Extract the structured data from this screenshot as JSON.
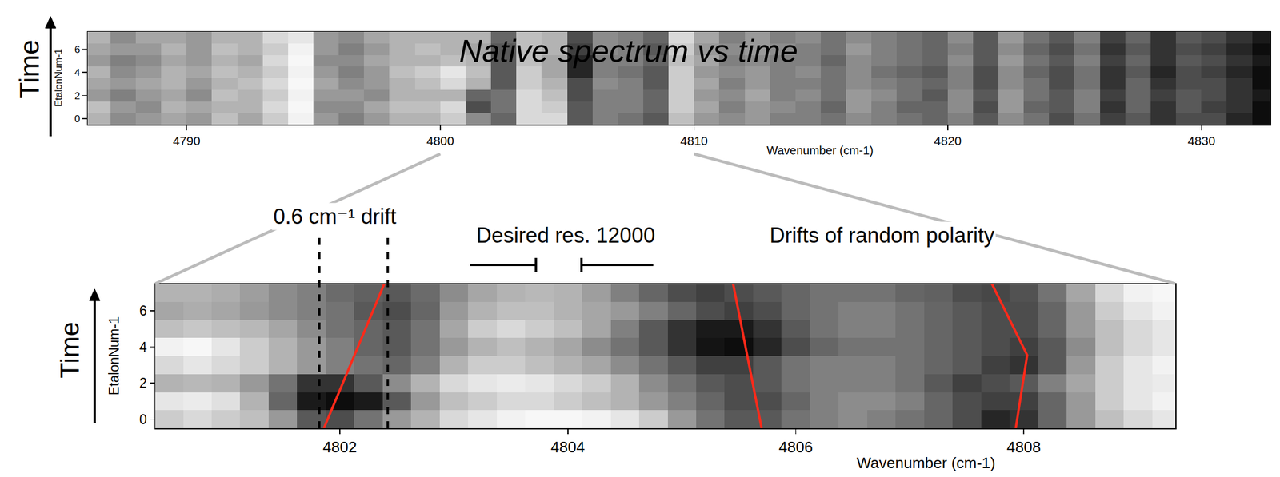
{
  "chart_data": [
    {
      "type": "heatmap",
      "title": "Native spectrum vs time",
      "x_label": "Wavenumber (cm-1)",
      "y_label": "EtalonNum-1",
      "arrow_label": "Time",
      "x": [
        4786.5,
        4787.5,
        4788.5,
        4789.5,
        4790.5,
        4791.5,
        4792.5,
        4793.5,
        4794.5,
        4795.5,
        4796.5,
        4797.5,
        4798.5,
        4799.5,
        4800.5,
        4801.5,
        4802.5,
        4803.5,
        4804.5,
        4805.5,
        4806.5,
        4807.5,
        4808.5,
        4809.5,
        4810.5,
        4811.5,
        4812.5,
        4813.5,
        4814.5,
        4815.5,
        4816.5,
        4817.5,
        4818.5,
        4819.5,
        4820.5,
        4821.5,
        4822.5,
        4823.5,
        4824.5,
        4825.5,
        4826.5,
        4827.5,
        4828.5,
        4829.5,
        4830.5,
        4831.5,
        4832.5
      ],
      "y": [
        0,
        1,
        2,
        3,
        4,
        5,
        6,
        7
      ],
      "cells": [
        [
          0.7,
          0.55,
          0.6,
          0.65,
          0.6,
          0.75,
          0.65,
          0.8,
          0.95,
          0.6,
          0.5,
          0.6,
          0.7,
          0.7,
          0.8,
          0.55,
          0.4,
          0.85,
          0.85,
          0.35,
          0.5,
          0.45,
          0.35,
          0.75,
          0.6,
          0.55,
          0.6,
          0.5,
          0.5,
          0.45,
          0.55,
          0.5,
          0.45,
          0.4,
          0.5,
          0.35,
          0.55,
          0.45,
          0.3,
          0.45,
          0.25,
          0.35,
          0.2,
          0.3,
          0.3,
          0.15,
          0.05
        ],
        [
          0.75,
          0.6,
          0.55,
          0.7,
          0.65,
          0.7,
          0.7,
          0.85,
          0.97,
          0.55,
          0.55,
          0.65,
          0.75,
          0.75,
          0.85,
          0.3,
          0.45,
          0.85,
          0.8,
          0.35,
          0.5,
          0.5,
          0.4,
          0.8,
          0.65,
          0.5,
          0.6,
          0.55,
          0.5,
          0.4,
          0.6,
          0.5,
          0.4,
          0.4,
          0.55,
          0.3,
          0.6,
          0.4,
          0.35,
          0.5,
          0.2,
          0.4,
          0.2,
          0.35,
          0.25,
          0.2,
          0.05
        ],
        [
          0.6,
          0.5,
          0.6,
          0.65,
          0.55,
          0.75,
          0.7,
          0.8,
          0.95,
          0.6,
          0.6,
          0.55,
          0.7,
          0.7,
          0.7,
          0.4,
          0.45,
          0.85,
          0.75,
          0.3,
          0.5,
          0.5,
          0.4,
          0.8,
          0.6,
          0.55,
          0.65,
          0.5,
          0.55,
          0.45,
          0.6,
          0.55,
          0.45,
          0.35,
          0.55,
          0.35,
          0.6,
          0.45,
          0.35,
          0.5,
          0.25,
          0.4,
          0.25,
          0.35,
          0.3,
          0.2,
          0.1
        ],
        [
          0.65,
          0.6,
          0.65,
          0.7,
          0.6,
          0.7,
          0.75,
          0.85,
          0.97,
          0.65,
          0.55,
          0.6,
          0.7,
          0.75,
          0.85,
          0.7,
          0.35,
          0.8,
          0.7,
          0.3,
          0.55,
          0.5,
          0.35,
          0.8,
          0.65,
          0.5,
          0.6,
          0.5,
          0.5,
          0.45,
          0.55,
          0.5,
          0.45,
          0.4,
          0.5,
          0.3,
          0.55,
          0.45,
          0.3,
          0.45,
          0.2,
          0.4,
          0.2,
          0.3,
          0.3,
          0.2,
          0.05
        ],
        [
          0.7,
          0.55,
          0.6,
          0.7,
          0.65,
          0.75,
          0.7,
          0.8,
          0.95,
          0.6,
          0.5,
          0.6,
          0.75,
          0.8,
          0.9,
          0.75,
          0.35,
          0.8,
          0.65,
          0.15,
          0.5,
          0.45,
          0.35,
          0.8,
          0.6,
          0.55,
          0.6,
          0.5,
          0.55,
          0.45,
          0.55,
          0.45,
          0.4,
          0.35,
          0.5,
          0.3,
          0.55,
          0.4,
          0.3,
          0.45,
          0.2,
          0.35,
          0.15,
          0.3,
          0.25,
          0.15,
          0.05
        ],
        [
          0.6,
          0.5,
          0.55,
          0.65,
          0.6,
          0.7,
          0.65,
          0.85,
          0.97,
          0.55,
          0.55,
          0.65,
          0.7,
          0.7,
          0.75,
          0.7,
          0.35,
          0.75,
          0.65,
          0.15,
          0.5,
          0.5,
          0.4,
          0.75,
          0.65,
          0.5,
          0.55,
          0.5,
          0.5,
          0.4,
          0.55,
          0.5,
          0.45,
          0.4,
          0.55,
          0.35,
          0.6,
          0.45,
          0.35,
          0.5,
          0.25,
          0.4,
          0.2,
          0.35,
          0.3,
          0.2,
          0.1
        ],
        [
          0.65,
          0.6,
          0.6,
          0.7,
          0.6,
          0.75,
          0.7,
          0.8,
          0.95,
          0.6,
          0.5,
          0.6,
          0.7,
          0.75,
          0.7,
          0.65,
          0.35,
          0.75,
          0.7,
          0.25,
          0.55,
          0.5,
          0.35,
          0.8,
          0.6,
          0.55,
          0.6,
          0.55,
          0.5,
          0.45,
          0.6,
          0.5,
          0.45,
          0.4,
          0.5,
          0.35,
          0.55,
          0.4,
          0.3,
          0.45,
          0.2,
          0.35,
          0.2,
          0.3,
          0.25,
          0.15,
          0.05
        ],
        [
          0.7,
          0.55,
          0.65,
          0.65,
          0.6,
          0.7,
          0.7,
          0.85,
          0.9,
          0.6,
          0.55,
          0.65,
          0.7,
          0.7,
          0.7,
          0.7,
          0.4,
          0.75,
          0.7,
          0.3,
          0.55,
          0.5,
          0.4,
          0.85,
          0.65,
          0.5,
          0.6,
          0.5,
          0.55,
          0.45,
          0.55,
          0.5,
          0.45,
          0.4,
          0.55,
          0.35,
          0.6,
          0.45,
          0.35,
          0.5,
          0.25,
          0.4,
          0.2,
          0.35,
          0.3,
          0.2,
          0.1
        ]
      ],
      "zlim": [
        0,
        1
      ],
      "xlim": [
        4786.1,
        4832.7
      ],
      "xticks": [
        4790,
        4800,
        4810,
        4820,
        4830
      ],
      "ylim": [
        -0.5,
        7.5
      ],
      "yticks": [
        0,
        2,
        4,
        6
      ],
      "zoom_x": [
        4800,
        4810
      ]
    },
    {
      "type": "heatmap",
      "x_label": "Wavenumber (cm-1)",
      "y_label": "EtalonNum-1",
      "arrow_label": "Time",
      "drift_label": "0.6 cm⁻¹ drift",
      "resolution_label": "Desired res. 12000",
      "polarity_label": "Drifts of random polarity",
      "x": [
        4800.5,
        4800.75,
        4801,
        4801.25,
        4801.5,
        4801.75,
        4802,
        4802.25,
        4802.5,
        4802.75,
        4803,
        4803.25,
        4803.5,
        4803.75,
        4804,
        4804.25,
        4804.5,
        4804.75,
        4805,
        4805.25,
        4805.5,
        4805.75,
        4806,
        4806.25,
        4806.5,
        4806.75,
        4807,
        4807.25,
        4807.5,
        4807.75,
        4808,
        4808.25,
        4808.5,
        4808.75,
        4809,
        4809.25
      ],
      "y": [
        0,
        1,
        2,
        3,
        4,
        5,
        6,
        7
      ],
      "cells": [
        [
          0.8,
          0.85,
          0.8,
          0.75,
          0.6,
          0.35,
          0.3,
          0.45,
          0.6,
          0.7,
          0.85,
          0.9,
          0.95,
          0.97,
          0.97,
          0.95,
          0.9,
          0.8,
          0.6,
          0.45,
          0.35,
          0.35,
          0.45,
          0.5,
          0.55,
          0.5,
          0.45,
          0.4,
          0.3,
          0.15,
          0.2,
          0.4,
          0.6,
          0.75,
          0.85,
          0.9
        ],
        [
          0.9,
          0.92,
          0.88,
          0.7,
          0.4,
          0.1,
          0.05,
          0.1,
          0.35,
          0.6,
          0.75,
          0.8,
          0.85,
          0.85,
          0.8,
          0.75,
          0.7,
          0.6,
          0.5,
          0.4,
          0.3,
          0.3,
          0.4,
          0.5,
          0.55,
          0.55,
          0.5,
          0.4,
          0.3,
          0.25,
          0.25,
          0.4,
          0.6,
          0.8,
          0.9,
          0.95
        ],
        [
          0.7,
          0.72,
          0.7,
          0.6,
          0.45,
          0.2,
          0.2,
          0.35,
          0.55,
          0.7,
          0.85,
          0.9,
          0.92,
          0.9,
          0.85,
          0.8,
          0.7,
          0.55,
          0.45,
          0.35,
          0.3,
          0.35,
          0.45,
          0.5,
          0.5,
          0.5,
          0.45,
          0.35,
          0.25,
          0.3,
          0.35,
          0.5,
          0.65,
          0.8,
          0.9,
          0.92
        ],
        [
          0.85,
          0.9,
          0.85,
          0.8,
          0.7,
          0.6,
          0.5,
          0.45,
          0.4,
          0.5,
          0.7,
          0.8,
          0.8,
          0.75,
          0.7,
          0.65,
          0.55,
          0.45,
          0.35,
          0.25,
          0.25,
          0.35,
          0.45,
          0.5,
          0.5,
          0.5,
          0.45,
          0.4,
          0.35,
          0.25,
          0.2,
          0.35,
          0.6,
          0.8,
          0.9,
          0.95
        ],
        [
          0.95,
          0.97,
          0.9,
          0.8,
          0.7,
          0.6,
          0.5,
          0.4,
          0.35,
          0.45,
          0.6,
          0.7,
          0.75,
          0.7,
          0.65,
          0.55,
          0.45,
          0.35,
          0.2,
          0.08,
          0.05,
          0.15,
          0.3,
          0.4,
          0.45,
          0.45,
          0.45,
          0.4,
          0.35,
          0.3,
          0.25,
          0.35,
          0.55,
          0.75,
          0.85,
          0.9
        ],
        [
          0.75,
          0.78,
          0.75,
          0.72,
          0.65,
          0.55,
          0.45,
          0.4,
          0.35,
          0.45,
          0.65,
          0.8,
          0.85,
          0.8,
          0.75,
          0.65,
          0.5,
          0.35,
          0.2,
          0.1,
          0.1,
          0.2,
          0.35,
          0.45,
          0.5,
          0.5,
          0.45,
          0.4,
          0.35,
          0.3,
          0.3,
          0.4,
          0.6,
          0.75,
          0.85,
          0.9
        ],
        [
          0.65,
          0.68,
          0.65,
          0.6,
          0.55,
          0.5,
          0.45,
          0.35,
          0.3,
          0.4,
          0.6,
          0.7,
          0.75,
          0.75,
          0.7,
          0.65,
          0.6,
          0.5,
          0.4,
          0.3,
          0.25,
          0.3,
          0.4,
          0.45,
          0.5,
          0.5,
          0.45,
          0.4,
          0.35,
          0.3,
          0.3,
          0.4,
          0.6,
          0.8,
          0.9,
          0.95
        ],
        [
          0.7,
          0.7,
          0.68,
          0.62,
          0.55,
          0.5,
          0.42,
          0.38,
          0.35,
          0.42,
          0.55,
          0.65,
          0.7,
          0.72,
          0.7,
          0.62,
          0.5,
          0.4,
          0.3,
          0.25,
          0.3,
          0.35,
          0.4,
          0.45,
          0.45,
          0.45,
          0.4,
          0.38,
          0.3,
          0.28,
          0.32,
          0.45,
          0.65,
          0.85,
          0.95,
          0.97
        ]
      ],
      "zlim": [
        0,
        1
      ],
      "xlim": [
        4800.38,
        4809.33
      ],
      "xticks": [
        4802,
        4804,
        4806,
        4808
      ],
      "ylim": [
        -0.5,
        7.5
      ],
      "yticks": [
        0,
        2,
        4,
        6
      ],
      "drift_markers": [
        4801.82,
        4802.42
      ],
      "resolution_bracket": [
        4803.14,
        4803.72,
        4804.12,
        4804.75
      ],
      "drift_lines": [
        {
          "x": [
            4801.86,
            4802.39
          ],
          "y": [
            -0.5,
            7.5
          ],
          "color": "#ff2a1a"
        },
        {
          "x": [
            4805.45,
            4805.7
          ],
          "y": [
            7.5,
            -0.5
          ],
          "color": "#ff2a1a"
        },
        {
          "x": [
            4807.72,
            4808.03,
            4807.93
          ],
          "y": [
            7.5,
            3.55,
            -0.5
          ],
          "color": "#ff2a1a"
        }
      ]
    }
  ]
}
